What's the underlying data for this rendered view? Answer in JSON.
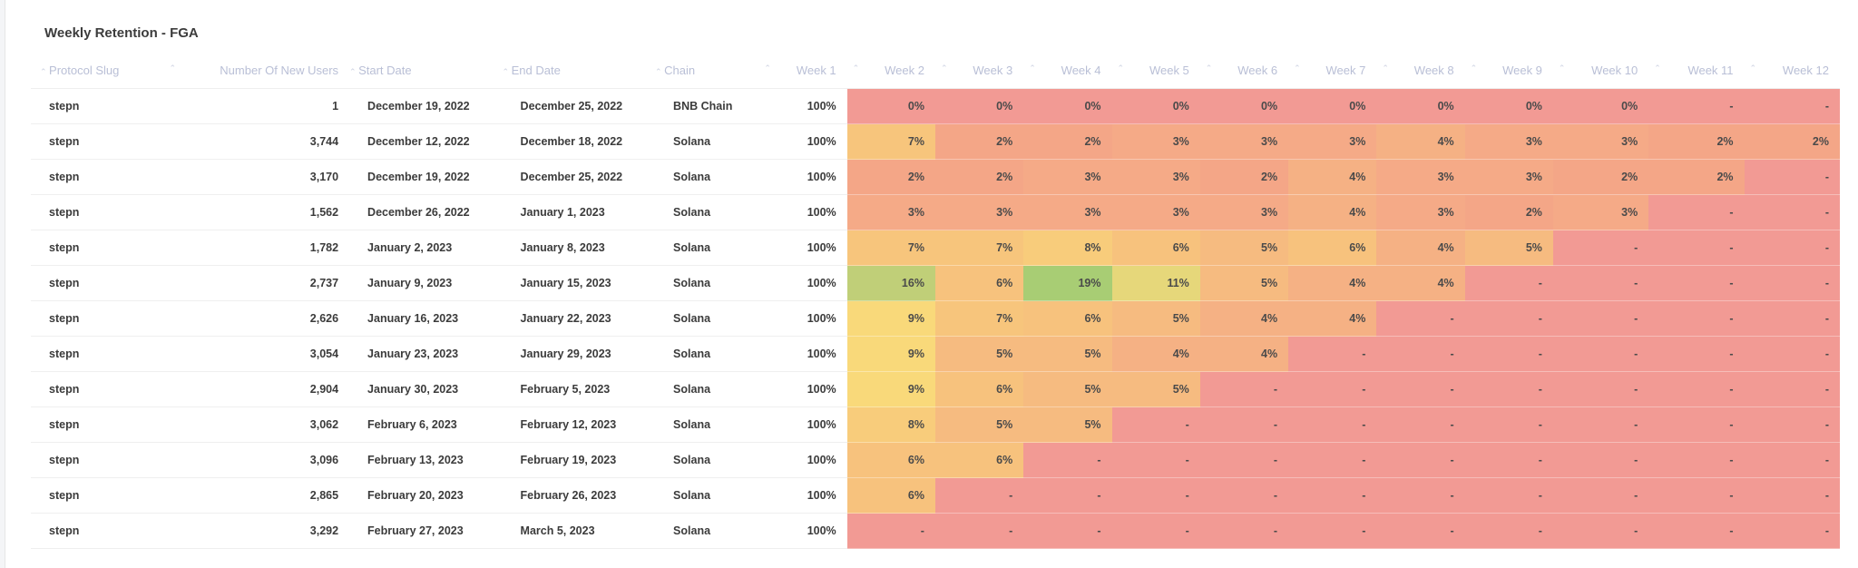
{
  "panel": {
    "title": "Weekly Retention - FGA"
  },
  "columns": [
    "Protocol Slug",
    "Number Of New Users",
    "Start Date",
    "End Date",
    "Chain",
    "Week 1",
    "Week 2",
    "Week 3",
    "Week 4",
    "Week 5",
    "Week 6",
    "Week 7",
    "Week 8",
    "Week 9",
    "Week 10",
    "Week 11",
    "Week 12"
  ],
  "colors": {
    "empty": "#f29a94",
    "zero": "#f29a94",
    "r2": "#f4a687",
    "r3": "#f5aa87",
    "r4": "#f5b184",
    "r5": "#f6bb80",
    "r6": "#f7c27d",
    "r7": "#f7c57c",
    "r8": "#f8cc7b",
    "r9": "#f9d97a",
    "r11": "#e6d77a",
    "r16": "#c0cf78",
    "r19": "#a8cd74"
  },
  "rows": [
    {
      "slug": "stepn",
      "users": "1",
      "start": "December 19, 2022",
      "end": "December 25, 2022",
      "chain": "BNB Chain",
      "week1": "100%",
      "weeks": [
        "0%",
        "0%",
        "0%",
        "0%",
        "0%",
        "0%",
        "0%",
        "0%",
        "0%",
        "-",
        "-"
      ]
    },
    {
      "slug": "stepn",
      "users": "3,744",
      "start": "December 12, 2022",
      "end": "December 18, 2022",
      "chain": "Solana",
      "week1": "100%",
      "weeks": [
        "7%",
        "2%",
        "2%",
        "3%",
        "3%",
        "3%",
        "4%",
        "3%",
        "3%",
        "2%",
        "2%"
      ]
    },
    {
      "slug": "stepn",
      "users": "3,170",
      "start": "December 19, 2022",
      "end": "December 25, 2022",
      "chain": "Solana",
      "week1": "100%",
      "weeks": [
        "2%",
        "2%",
        "3%",
        "3%",
        "2%",
        "4%",
        "3%",
        "3%",
        "2%",
        "2%",
        "-"
      ]
    },
    {
      "slug": "stepn",
      "users": "1,562",
      "start": "December 26, 2022",
      "end": "January 1, 2023",
      "chain": "Solana",
      "week1": "100%",
      "weeks": [
        "3%",
        "3%",
        "3%",
        "3%",
        "3%",
        "4%",
        "3%",
        "2%",
        "3%",
        "-",
        "-"
      ]
    },
    {
      "slug": "stepn",
      "users": "1,782",
      "start": "January 2, 2023",
      "end": "January 8, 2023",
      "chain": "Solana",
      "week1": "100%",
      "weeks": [
        "7%",
        "7%",
        "8%",
        "6%",
        "5%",
        "6%",
        "4%",
        "5%",
        "-",
        "-",
        "-"
      ]
    },
    {
      "slug": "stepn",
      "users": "2,737",
      "start": "January 9, 2023",
      "end": "January 15, 2023",
      "chain": "Solana",
      "week1": "100%",
      "weeks": [
        "16%",
        "6%",
        "19%",
        "11%",
        "5%",
        "4%",
        "4%",
        "-",
        "-",
        "-",
        "-"
      ]
    },
    {
      "slug": "stepn",
      "users": "2,626",
      "start": "January 16, 2023",
      "end": "January 22, 2023",
      "chain": "Solana",
      "week1": "100%",
      "weeks": [
        "9%",
        "7%",
        "6%",
        "5%",
        "4%",
        "4%",
        "-",
        "-",
        "-",
        "-",
        "-"
      ]
    },
    {
      "slug": "stepn",
      "users": "3,054",
      "start": "January 23, 2023",
      "end": "January 29, 2023",
      "chain": "Solana",
      "week1": "100%",
      "weeks": [
        "9%",
        "5%",
        "5%",
        "4%",
        "4%",
        "-",
        "-",
        "-",
        "-",
        "-",
        "-"
      ]
    },
    {
      "slug": "stepn",
      "users": "2,904",
      "start": "January 30, 2023",
      "end": "February 5, 2023",
      "chain": "Solana",
      "week1": "100%",
      "weeks": [
        "9%",
        "6%",
        "5%",
        "5%",
        "-",
        "-",
        "-",
        "-",
        "-",
        "-",
        "-"
      ]
    },
    {
      "slug": "stepn",
      "users": "3,062",
      "start": "February 6, 2023",
      "end": "February 12, 2023",
      "chain": "Solana",
      "week1": "100%",
      "weeks": [
        "8%",
        "5%",
        "5%",
        "-",
        "-",
        "-",
        "-",
        "-",
        "-",
        "-",
        "-"
      ]
    },
    {
      "slug": "stepn",
      "users": "3,096",
      "start": "February 13, 2023",
      "end": "February 19, 2023",
      "chain": "Solana",
      "week1": "100%",
      "weeks": [
        "6%",
        "6%",
        "-",
        "-",
        "-",
        "-",
        "-",
        "-",
        "-",
        "-",
        "-"
      ]
    },
    {
      "slug": "stepn",
      "users": "2,865",
      "start": "February 20, 2023",
      "end": "February 26, 2023",
      "chain": "Solana",
      "week1": "100%",
      "weeks": [
        "6%",
        "-",
        "-",
        "-",
        "-",
        "-",
        "-",
        "-",
        "-",
        "-",
        "-"
      ]
    },
    {
      "slug": "stepn",
      "users": "3,292",
      "start": "February 27, 2023",
      "end": "March 5, 2023",
      "chain": "Solana",
      "week1": "100%",
      "weeks": [
        "-",
        "-",
        "-",
        "-",
        "-",
        "-",
        "-",
        "-",
        "-",
        "-",
        "-"
      ]
    }
  ]
}
